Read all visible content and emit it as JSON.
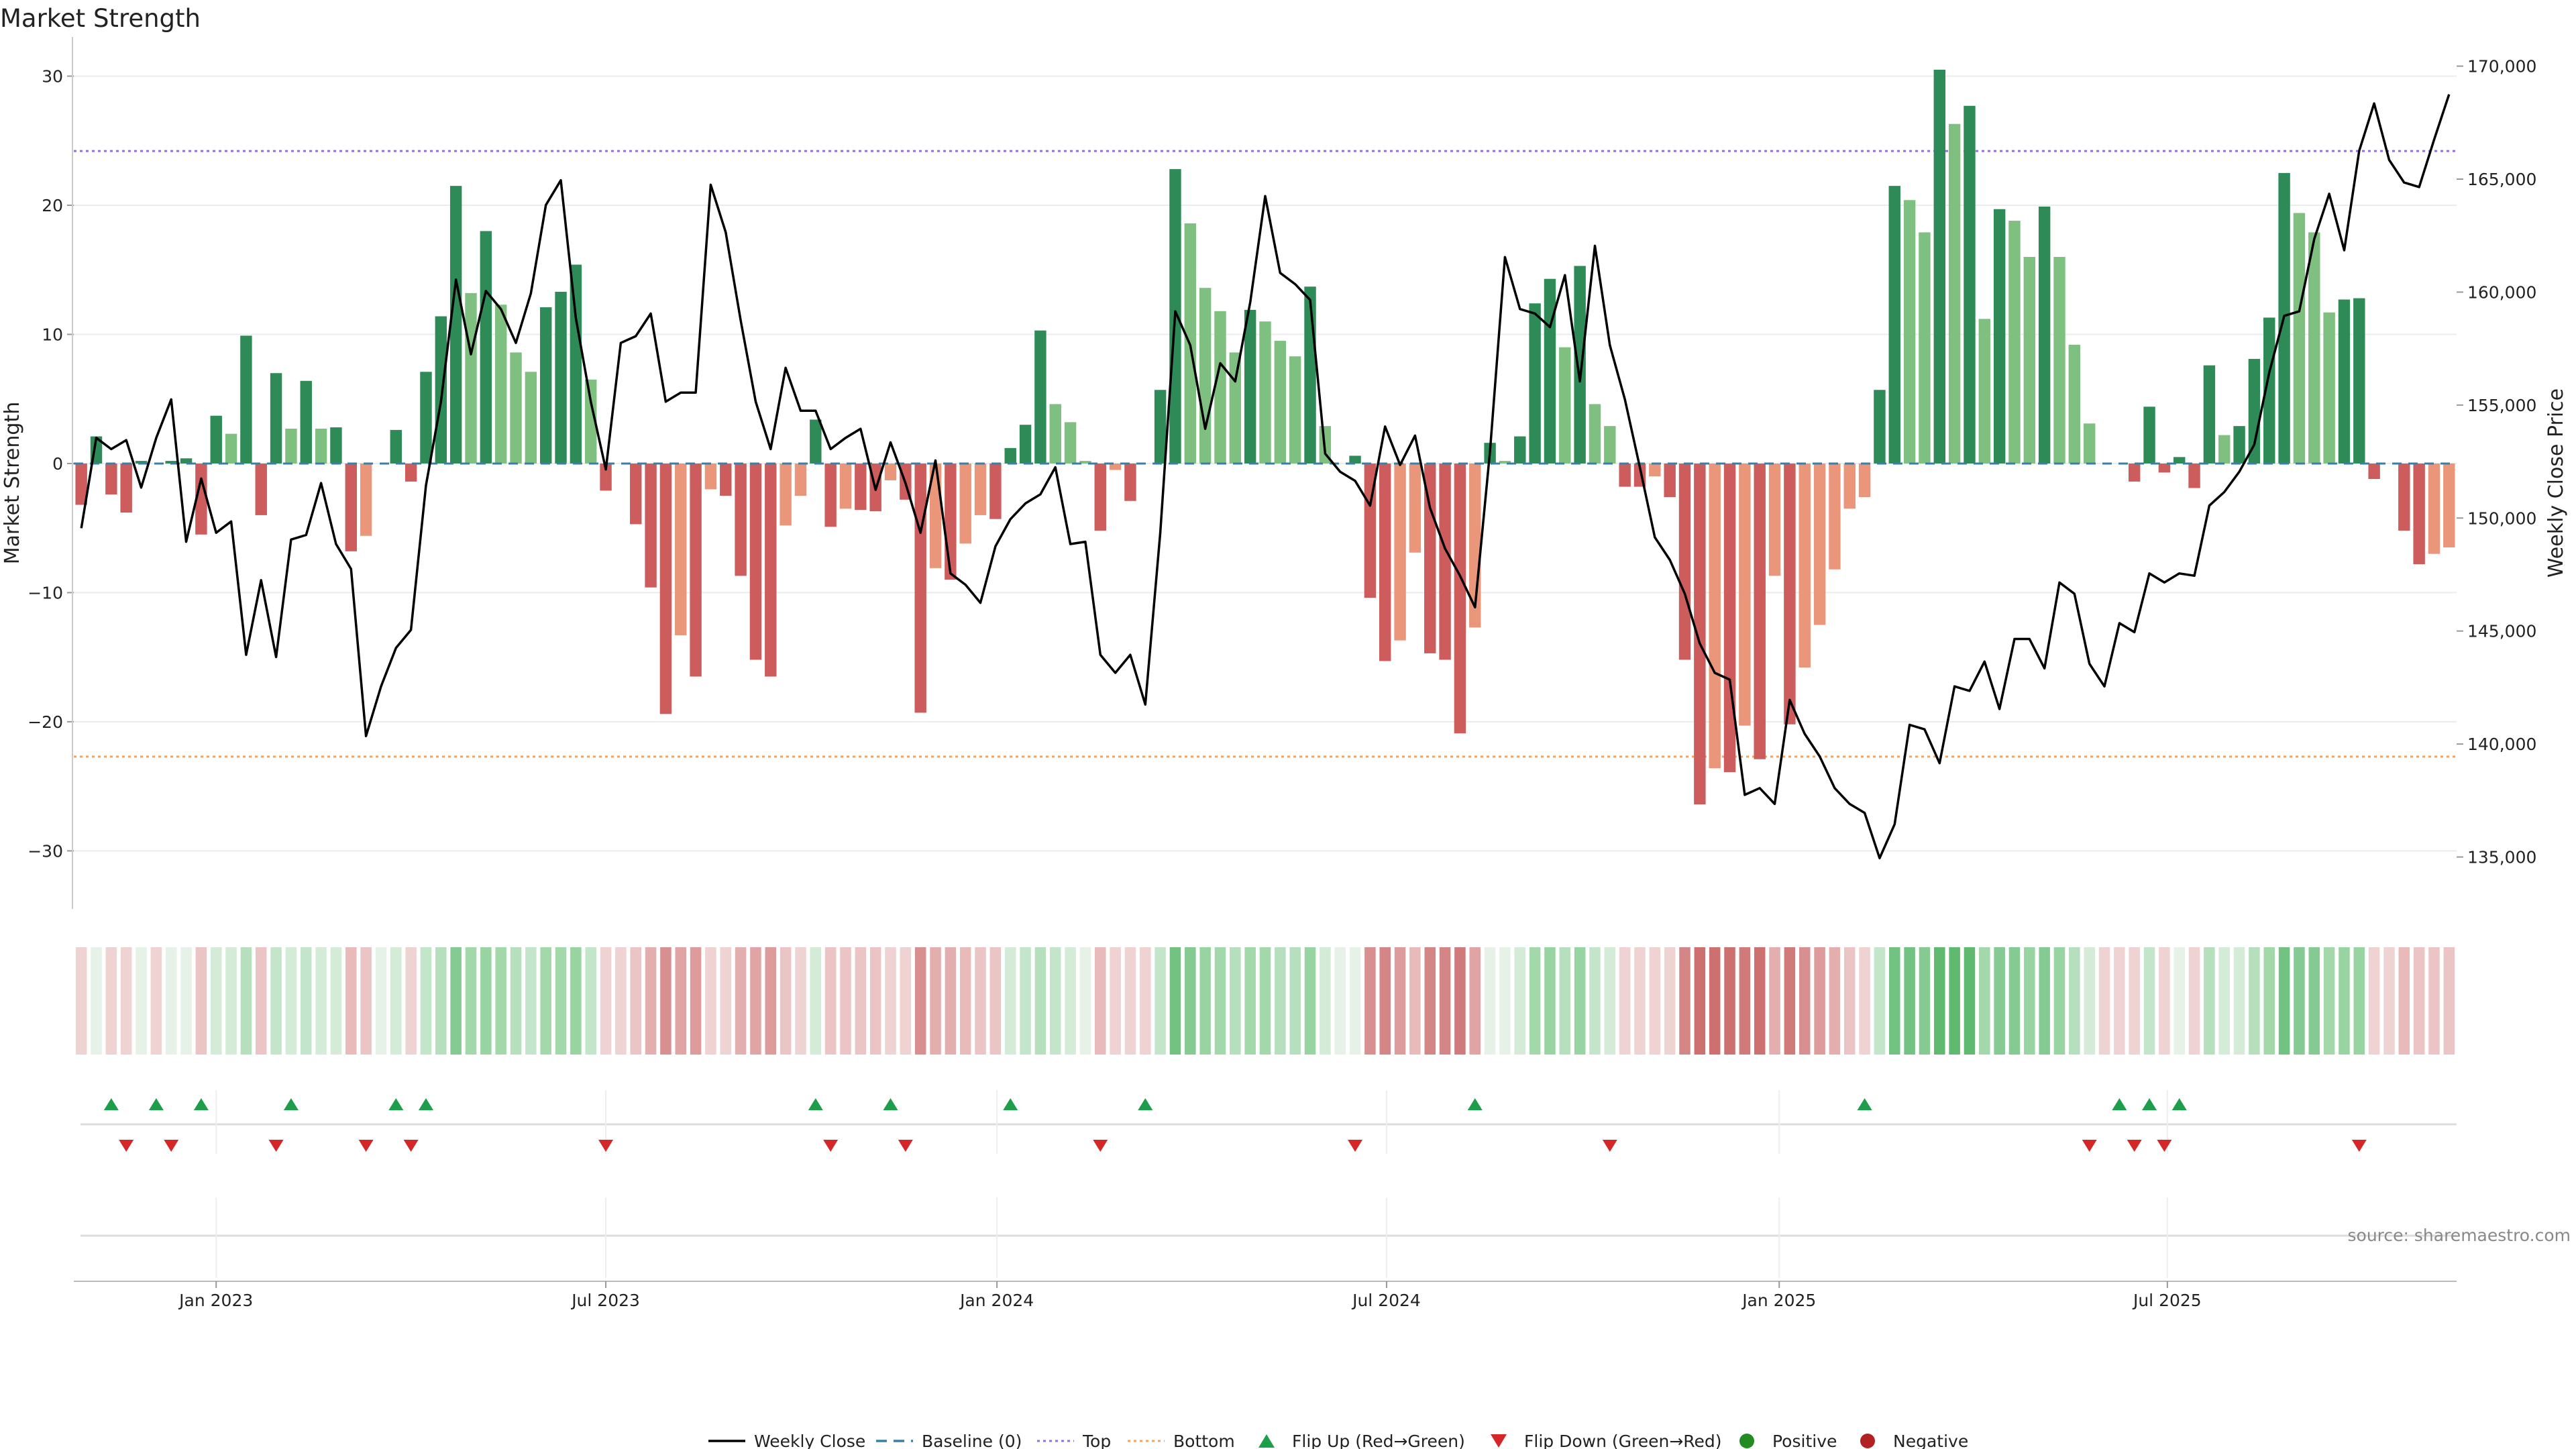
{
  "chart_data": {
    "type": "bar",
    "title": "Market Strength",
    "ylabel": "Market Strength",
    "y2label": "Weekly Close Price",
    "ylim": [
      -34.5,
      32
    ],
    "y2lim": [
      132700,
      170700
    ],
    "yticks": [
      30,
      20,
      10,
      0,
      -10,
      -20,
      -30
    ],
    "ytick_labels": [
      "30",
      "20",
      "10",
      "0",
      "−10",
      "−20",
      "−30"
    ],
    "y2ticks": [
      170000,
      165000,
      160000,
      155000,
      150000,
      145000,
      140000,
      135000
    ],
    "y2tick_labels": [
      "170,000",
      "165,000",
      "160,000",
      "155,000",
      "150,000",
      "145,000",
      "140,000",
      "135,000"
    ],
    "x_date_ticks": [
      {
        "week": 9.5,
        "label": "Jan 2023"
      },
      {
        "week": 35.5,
        "label": "Jul 2023"
      },
      {
        "week": 61.6,
        "label": "Jan 2024"
      },
      {
        "week": 87.6,
        "label": "Jul 2024"
      },
      {
        "week": 113.8,
        "label": "Jan 2025"
      },
      {
        "week": 139.7,
        "label": "Jul 2025"
      }
    ],
    "thresholds": {
      "top": 24.2,
      "bottom": -22.7
    },
    "strength": [
      -3.2,
      2.1,
      -2.4,
      -3.8,
      0.2,
      0,
      0.2,
      0.4,
      -5.5,
      3.7,
      2.3,
      9.9,
      -4,
      7,
      2.7,
      6.4,
      2.7,
      2.8,
      -6.8,
      -5.6,
      0,
      2.6,
      -1.4,
      7.1,
      11.4,
      21.5,
      13.2,
      18,
      12.3,
      8.6,
      7.1,
      12.1,
      13.3,
      15.4,
      6.5,
      -2.1,
      0,
      -4.7,
      -9.6,
      -19.4,
      -13.3,
      -16.5,
      -2,
      -2.5,
      -8.7,
      -15.2,
      -16.5,
      -4.8,
      -2.5,
      3.4,
      -4.9,
      -3.5,
      -3.6,
      -3.7,
      -1.3,
      -2.8,
      -19.3,
      -8.1,
      -9,
      -6.2,
      -4,
      -4.3,
      1.2,
      3,
      10.3,
      4.6,
      3.2,
      0.2,
      -5.2,
      -0.5,
      -2.9,
      0,
      5.7,
      22.8,
      18.6,
      13.6,
      11.8,
      8.6,
      11.9,
      11,
      9.5,
      8.3,
      13.7,
      2.9,
      0,
      0.6,
      -10.4,
      -15.3,
      -13.7,
      -6.9,
      -14.7,
      -15.2,
      -20.9,
      -12.7,
      1.6,
      0.2,
      2.1,
      12.4,
      14.3,
      9,
      15.3,
      4.6,
      2.9,
      -1.8,
      -1.8,
      -1,
      -2.6,
      -15.2,
      -26.4,
      -23.6,
      -23.9,
      -20.3,
      -22.9,
      -8.7,
      -20.2,
      -15.8,
      -12.5,
      -8.2,
      -3.5,
      -2.6,
      5.7,
      21.5,
      20.4,
      17.9,
      30.5,
      26.3,
      27.7,
      11.2,
      19.7,
      18.8,
      16,
      19.9,
      16,
      9.2,
      3.1,
      0,
      0,
      -1.4,
      4.4,
      -0.7,
      0.5,
      -1.9,
      7.6,
      2.2,
      2.9,
      8.1,
      11.3,
      22.5,
      19.4,
      17.9,
      11.7,
      12.7,
      12.8,
      -1.2,
      0,
      -5.2,
      -7.8,
      -7,
      -6.5
    ],
    "close": [
      149550,
      153550,
      153050,
      153450,
      151350,
      153550,
      155250,
      148950,
      151750,
      149350,
      149850,
      143950,
      147250,
      143850,
      149050,
      149250,
      151550,
      148850,
      147750,
      140350,
      142550,
      144250,
      145050,
      151450,
      155150,
      160550,
      157250,
      160050,
      159250,
      157750,
      159950,
      163850,
      164950,
      158850,
      155150,
      152150,
      157750,
      158050,
      159050,
      155150,
      155550,
      155550,
      164750,
      162650,
      158750,
      155150,
      153050,
      156650,
      154750,
      154750,
      153050,
      153550,
      153950,
      151250,
      153350,
      151550,
      149350,
      152550,
      147550,
      147050,
      146250,
      148750,
      149950,
      150650,
      151050,
      152250,
      148850,
      148950,
      143950,
      143150,
      143950,
      141750,
      149350,
      159150,
      157650,
      153950,
      156850,
      156050,
      159550,
      164250,
      160850,
      160350,
      159650,
      152850,
      152050,
      151650,
      150550,
      154050,
      152350,
      153650,
      150450,
      148650,
      147450,
      146050,
      152950,
      161550,
      159250,
      159050,
      158450,
      160750,
      156050,
      162050,
      157650,
      155250,
      152250,
      149150,
      148150,
      146650,
      144450,
      143150,
      142850,
      137750,
      138050,
      137350,
      141950,
      140450,
      139450,
      138050,
      137350,
      136950,
      134950,
      136450,
      140850,
      140650,
      139150,
      142550,
      142350,
      143650,
      141550,
      144650,
      144650,
      143350,
      147150,
      146650,
      143550,
      142550,
      145350,
      144950,
      147550,
      147150,
      147550,
      147450,
      150550,
      151150,
      152050,
      153250,
      156450,
      158950,
      159150,
      162350,
      164350,
      161850,
      166250,
      168350,
      165850,
      164850,
      164650,
      166750,
      168750
    ],
    "color_strip": [
      "#efd3d3",
      "#e6f2e7",
      "#efd3d3",
      "#efd3d3",
      "#e6f2e7",
      "#efd3d3",
      "#e6f2e7",
      "#e6f2e7",
      "#ebc5c5",
      "#d3ebd7",
      "#d3ebd7",
      "#b6dfbd",
      "#ebc5c5",
      "#c3e5c9",
      "#d3ebd7",
      "#c3e5c9",
      "#d3ebd7",
      "#d3ebd7",
      "#e8baba",
      "#ebc5c5",
      "#e6f2e7",
      "#d3ebd7",
      "#efd3d3",
      "#c3e5c9",
      "#b6dfbd",
      "#85ca92",
      "#a3d8ab",
      "#98d3a2",
      "#a3d8ab",
      "#b6dfbd",
      "#c3e5c9",
      "#a3d8ab",
      "#a3d8ab",
      "#98d3a2",
      "#c3e5c9",
      "#efd3d3",
      "#efd3d3",
      "#ebc5c5",
      "#e3aeae",
      "#d88f8f",
      "#e0a4a4",
      "#dd9b9b",
      "#efd3d3",
      "#efd3d3",
      "#e3aeae",
      "#e0a4a4",
      "#dd9b9b",
      "#ebc5c5",
      "#efd3d3",
      "#d3ebd7",
      "#ebc5c5",
      "#ebc5c5",
      "#ebc5c5",
      "#ebc5c5",
      "#efd3d3",
      "#efd3d3",
      "#d88f8f",
      "#e3aeae",
      "#e3aeae",
      "#e8baba",
      "#ebc5c5",
      "#ebc5c5",
      "#d3ebd7",
      "#c3e5c9",
      "#b6dfbd",
      "#c3e5c9",
      "#d3ebd7",
      "#e6f2e7",
      "#e8baba",
      "#efd3d3",
      "#efd3d3",
      "#efd3d3",
      "#c3e5c9",
      "#72c281",
      "#85ca92",
      "#98d3a2",
      "#a3d8ab",
      "#b6dfbd",
      "#a3d8ab",
      "#a3d8ab",
      "#b6dfbd",
      "#b6dfbd",
      "#98d3a2",
      "#d3ebd7",
      "#e6f2e7",
      "#e6f2e7",
      "#d88f8f",
      "#d48585",
      "#dd9b9b",
      "#e8baba",
      "#d48585",
      "#d48585",
      "#d07a7a",
      "#e0a4a4",
      "#e6f2e7",
      "#e6f2e7",
      "#d3ebd7",
      "#a3d8ab",
      "#98d3a2",
      "#b6dfbd",
      "#98d3a2",
      "#c3e5c9",
      "#d3ebd7",
      "#efd3d3",
      "#efd3d3",
      "#efd3d3",
      "#efd3d3",
      "#d48585",
      "#cd7070",
      "#cd7070",
      "#cd7070",
      "#d07a7a",
      "#cd7070",
      "#e3aeae",
      "#d07a7a",
      "#d88f8f",
      "#dd9b9b",
      "#e3aeae",
      "#ebc5c5",
      "#efd3d3",
      "#c3e5c9",
      "#72c281",
      "#72c281",
      "#85ca92",
      "#5fba70",
      "#5fba70",
      "#5fba70",
      "#a3d8ab",
      "#85ca92",
      "#85ca92",
      "#98d3a2",
      "#85ca92",
      "#98d3a2",
      "#b6dfbd",
      "#d3ebd7",
      "#efd3d3",
      "#efd3d3",
      "#efd3d3",
      "#c3e5c9",
      "#efd3d3",
      "#e6f2e7",
      "#efd3d3",
      "#b6dfbd",
      "#d3ebd7",
      "#d3ebd7",
      "#b6dfbd",
      "#a3d8ab",
      "#72c281",
      "#85ca92",
      "#85ca92",
      "#a3d8ab",
      "#98d3a2",
      "#98d3a2",
      "#efd3d3",
      "#efd3d3",
      "#e8baba",
      "#ebc5c5",
      "#ebc5c5",
      "#ebc5c5"
    ],
    "flip_up_weeks": [
      2,
      5,
      8,
      14,
      21,
      23,
      49,
      54,
      62,
      71,
      93,
      119,
      136,
      138,
      140
    ],
    "flip_down_weeks": [
      3,
      6,
      13,
      19,
      22,
      35,
      50,
      55,
      68,
      85,
      102,
      134,
      137,
      139,
      152
    ],
    "colors": {
      "green_strong": "#2e8b57",
      "green_light": "#7fbf7f",
      "red_strong": "#cd5c5c",
      "red_light": "#e9967a",
      "flip_up": "#1e9e4a",
      "flip_down": "#d62728",
      "top_line": "#9370db",
      "bottom_line": "#f4a460",
      "close_line": "#000000",
      "baseline": "#3a7fa8",
      "positive_dot": "#228b22",
      "negative_dot": "#b22222"
    },
    "legend": [
      {
        "label": "Weekly Close",
        "kind": "line"
      },
      {
        "label": "Baseline (0)",
        "kind": "dash"
      },
      {
        "label": "Top",
        "kind": "dot-top"
      },
      {
        "label": "Bottom",
        "kind": "dot-bottom"
      },
      {
        "label": "Flip Up (Red→Green)",
        "kind": "tri-up"
      },
      {
        "label": "Flip Down (Green→Red)",
        "kind": "tri-down"
      },
      {
        "label": "Positive",
        "kind": "dot-pos"
      },
      {
        "label": "Negative",
        "kind": "dot-neg"
      }
    ],
    "source": "source: sharemaestro.com",
    "legend_position": "bottom-center"
  }
}
